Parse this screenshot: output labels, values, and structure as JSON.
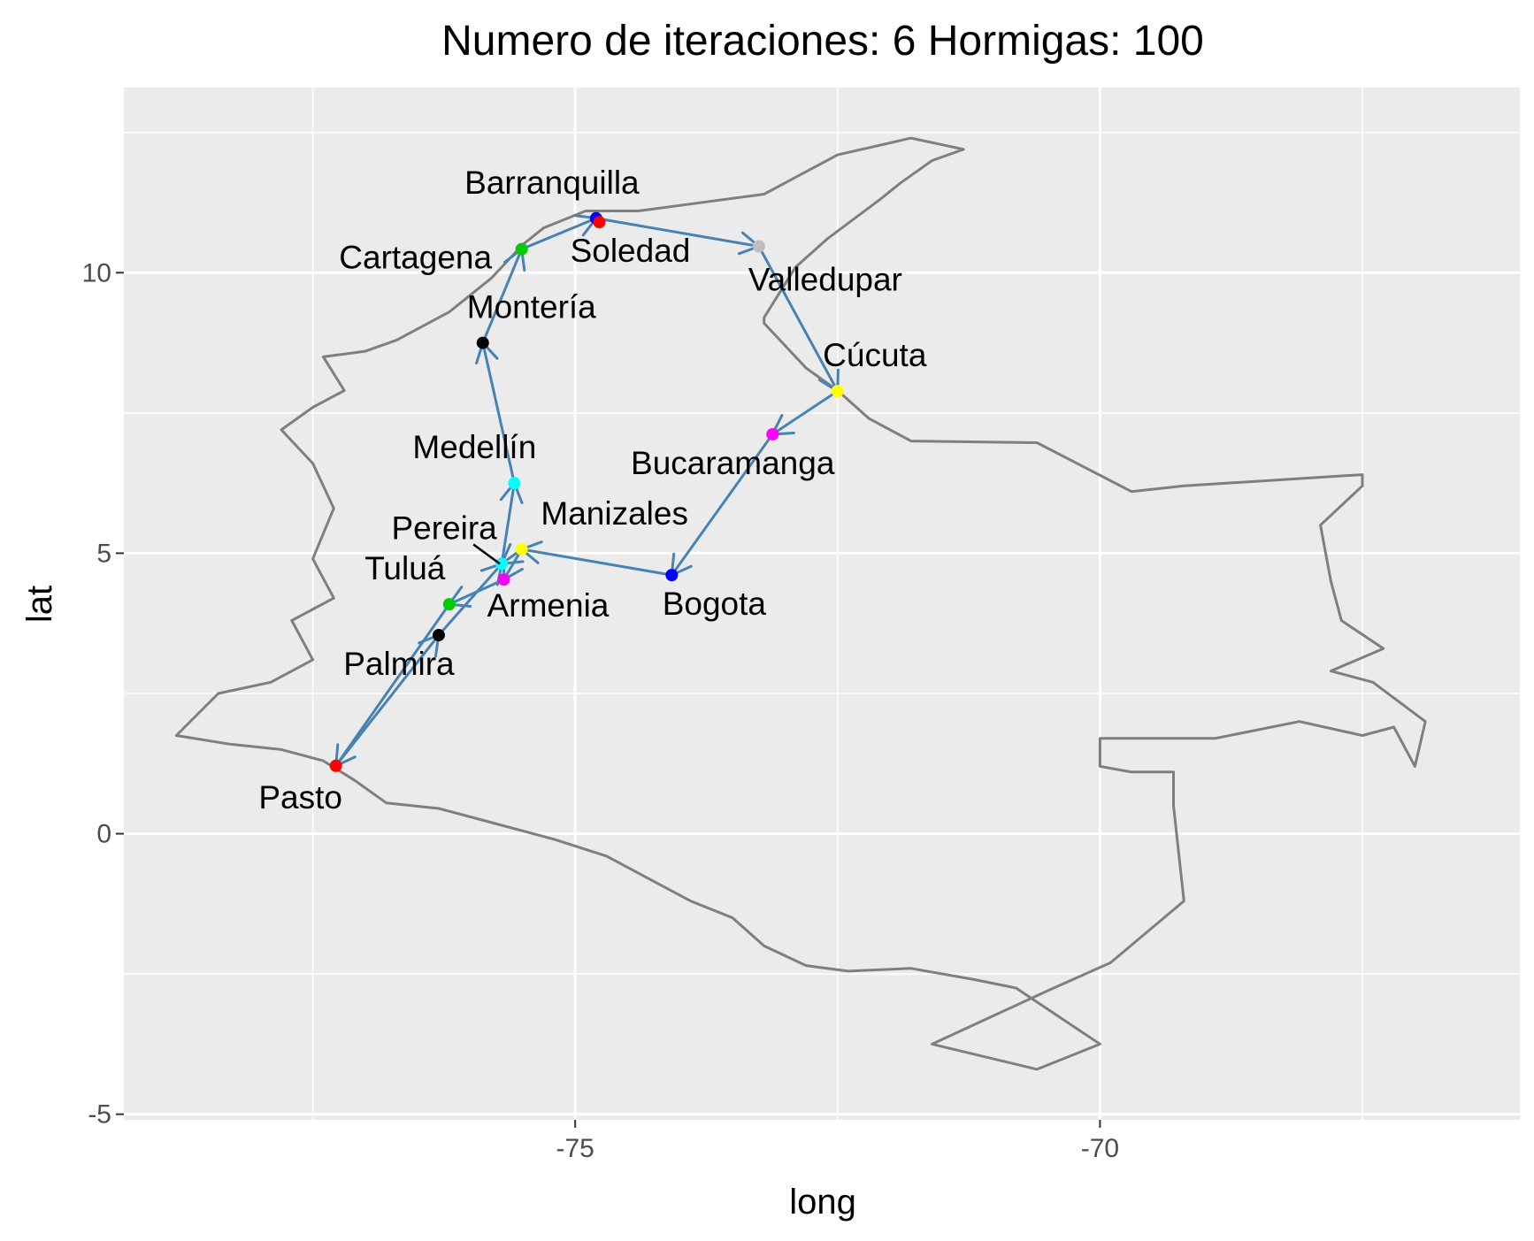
{
  "chart_data": {
    "type": "scatter",
    "title": "Numero de iteraciones: 6 Hormigas: 100",
    "xlabel": "long",
    "ylabel": "lat",
    "xlim": [
      -79.3,
      -66.0
    ],
    "ylim": [
      -5.1,
      13.3
    ],
    "x_breaks": [
      -75,
      -70
    ],
    "x_tick_labels": [
      "-75",
      "-70"
    ],
    "x_minor_breaks": [
      -77.5,
      -72.5,
      -67.5
    ],
    "y_breaks": [
      -5,
      0,
      5,
      10
    ],
    "y_tick_labels": [
      "-5",
      "0",
      "5",
      "10"
    ],
    "y_minor_breaks": [
      -2.5,
      2.5,
      7.5,
      12.5
    ],
    "grid": true,
    "panel_background": "#ebebeb",
    "grid_color": "#ffffff",
    "border_color": "#7f7f7f",
    "route_color": "#4682b4",
    "cities": [
      {
        "name": "Barranquilla",
        "long": -74.8,
        "lat": 10.97,
        "color": "#0000ff"
      },
      {
        "name": "Soledad",
        "long": -74.77,
        "lat": 10.9,
        "color": "#ff0000"
      },
      {
        "name": "Cartagena",
        "long": -75.51,
        "lat": 10.42,
        "color": "#00cd00"
      },
      {
        "name": "Valledupar",
        "long": -73.25,
        "lat": 10.47,
        "color": "#bebebe"
      },
      {
        "name": "Montería",
        "long": -75.88,
        "lat": 8.75,
        "color": "#000000"
      },
      {
        "name": "Cúcuta",
        "long": -72.5,
        "lat": 7.89,
        "color": "#ffff00"
      },
      {
        "name": "Bucaramanga",
        "long": -73.12,
        "lat": 7.12,
        "color": "#ff00ff"
      },
      {
        "name": "Medellín",
        "long": -75.58,
        "lat": 6.25,
        "color": "#00ffff"
      },
      {
        "name": "Manizales",
        "long": -75.51,
        "lat": 5.07,
        "color": "#ffff00"
      },
      {
        "name": "Pereira",
        "long": -75.7,
        "lat": 4.81,
        "color": "#00ffff"
      },
      {
        "name": "Armenia",
        "long": -75.68,
        "lat": 4.53,
        "color": "#ff00ff"
      },
      {
        "name": "Bogota",
        "long": -74.08,
        "lat": 4.61,
        "color": "#0000ff"
      },
      {
        "name": "Tuluá",
        "long": -76.2,
        "lat": 4.09,
        "color": "#00cd00"
      },
      {
        "name": "Palmira",
        "long": -76.3,
        "lat": 3.54,
        "color": "#000000"
      },
      {
        "name": "Pasto",
        "long": -77.28,
        "lat": 1.21,
        "color": "#ff0000"
      }
    ],
    "route": [
      "Cúcuta",
      "Bucaramanga",
      "Bogota",
      "Manizales",
      "Pereira",
      "Medellín",
      "Montería",
      "Cartagena",
      "Barranquilla",
      "Valledupar",
      "Cúcuta"
    ],
    "route_secondary": [
      "Manizales",
      "Armenia",
      "Tuluá",
      "Pasto",
      "Palmira",
      "Pereira"
    ],
    "colombia_outline": [
      [
        -78.3,
        1.6
      ],
      [
        -77.8,
        1.5
      ],
      [
        -77.4,
        1.3
      ],
      [
        -77.1,
        0.95
      ],
      [
        -76.8,
        0.55
      ],
      [
        -76.3,
        0.45
      ],
      [
        -75.7,
        0.15
      ],
      [
        -75.2,
        -0.1
      ],
      [
        -74.7,
        -0.4
      ],
      [
        -74.3,
        -0.8
      ],
      [
        -73.9,
        -1.2
      ],
      [
        -73.5,
        -1.5
      ],
      [
        -73.2,
        -2.0
      ],
      [
        -72.8,
        -2.35
      ],
      [
        -72.4,
        -2.45
      ],
      [
        -71.8,
        -2.4
      ],
      [
        -71.2,
        -2.6
      ],
      [
        -70.8,
        -2.75
      ],
      [
        -70.0,
        -3.75
      ],
      [
        -70.6,
        -4.2
      ],
      [
        -71.6,
        -3.75
      ],
      [
        -70.5,
        -2.8
      ],
      [
        -69.9,
        -2.3
      ],
      [
        -69.2,
        -1.2
      ],
      [
        -69.3,
        0.5
      ],
      [
        -69.3,
        1.1
      ],
      [
        -69.7,
        1.1
      ],
      [
        -70.0,
        1.2
      ],
      [
        -70.0,
        1.7
      ],
      [
        -68.9,
        1.7
      ],
      [
        -68.1,
        2.0
      ],
      [
        -67.5,
        1.75
      ],
      [
        -67.2,
        1.9
      ],
      [
        -67.0,
        1.2
      ],
      [
        -66.9,
        2.0
      ],
      [
        -67.4,
        2.7
      ],
      [
        -67.8,
        2.9
      ],
      [
        -67.3,
        3.3
      ],
      [
        -67.7,
        3.8
      ],
      [
        -67.8,
        4.5
      ],
      [
        -67.9,
        5.5
      ],
      [
        -67.5,
        6.2
      ],
      [
        -67.5,
        6.4
      ],
      [
        -69.2,
        6.2
      ],
      [
        -69.7,
        6.1
      ],
      [
        -70.6,
        6.97
      ],
      [
        -71.8,
        7.0
      ],
      [
        -72.2,
        7.4
      ],
      [
        -72.5,
        7.9
      ],
      [
        -72.8,
        8.3
      ],
      [
        -73.2,
        9.1
      ],
      [
        -73.2,
        9.2
      ],
      [
        -72.9,
        10.1
      ],
      [
        -72.6,
        10.6
      ],
      [
        -72.1,
        11.3
      ],
      [
        -71.9,
        11.6
      ],
      [
        -71.6,
        12.0
      ],
      [
        -71.3,
        12.2
      ],
      [
        -71.8,
        12.4
      ],
      [
        -72.5,
        12.1
      ],
      [
        -73.2,
        11.4
      ],
      [
        -74.0,
        11.2
      ],
      [
        -74.4,
        11.1
      ],
      [
        -74.9,
        11.1
      ],
      [
        -75.3,
        10.8
      ],
      [
        -75.5,
        10.5
      ],
      [
        -75.8,
        9.9
      ],
      [
        -76.2,
        9.3
      ],
      [
        -76.7,
        8.8
      ],
      [
        -77.0,
        8.6
      ],
      [
        -77.4,
        8.5
      ],
      [
        -77.2,
        7.9
      ],
      [
        -77.5,
        7.6
      ],
      [
        -77.8,
        7.2
      ],
      [
        -77.5,
        6.6
      ],
      [
        -77.3,
        5.8
      ],
      [
        -77.5,
        4.9
      ],
      [
        -77.3,
        4.2
      ],
      [
        -77.7,
        3.8
      ],
      [
        -77.5,
        3.1
      ],
      [
        -77.9,
        2.7
      ],
      [
        -78.4,
        2.5
      ],
      [
        -78.8,
        1.75
      ],
      [
        -78.3,
        1.6
      ]
    ]
  }
}
